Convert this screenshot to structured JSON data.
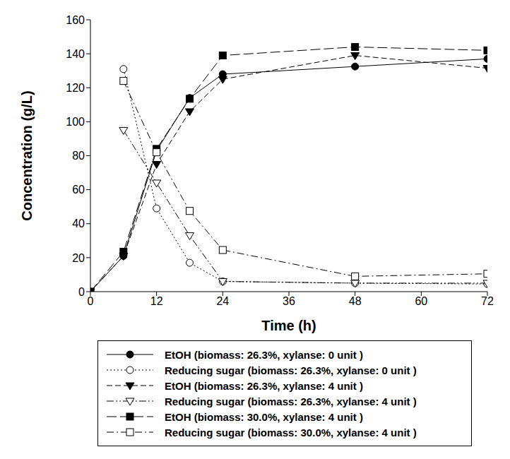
{
  "chart_data": {
    "type": "line",
    "x_label": "Time (h)",
    "y_label": "Concentration (g/L)",
    "x": [
      0,
      6,
      12,
      18,
      24,
      48,
      72
    ],
    "xlim": [
      0,
      72
    ],
    "xticks": [
      0,
      12,
      24,
      36,
      48,
      60,
      72
    ],
    "ylim": [
      0,
      160
    ],
    "yticks": [
      0,
      20,
      40,
      60,
      80,
      100,
      120,
      140,
      160
    ],
    "grid": false,
    "legend": "bottom",
    "series": [
      {
        "name": "EtOH (biomass: 26.3%, xylanse: 0 unit )",
        "color": "#000000",
        "marker": "circle",
        "line_style": "solid",
        "values": [
          0,
          21,
          83,
          114,
          128,
          132.5,
          137
        ]
      },
      {
        "name": "Reducing sugar (biomass: 26.3%, xylanse: 0 unit )",
        "color": "#000000",
        "marker": "circle_open",
        "line_style": "dotted",
        "values": [
          null,
          131,
          49,
          17,
          6,
          5,
          4.5
        ]
      },
      {
        "name": "EtOH (biomass: 26.3%, xylanse: 4 unit )",
        "color": "#000000",
        "marker": "triangle_down",
        "line_style": "dashed",
        "values": [
          0,
          21,
          75,
          106,
          125,
          139,
          131.5
        ]
      },
      {
        "name": "Reducing sugar (biomass: 26.3%, xylanse: 4 unit )",
        "color": "#000000",
        "marker": "triangle_down_open",
        "line_style": "dashdotdot",
        "values": [
          null,
          95,
          64,
          33,
          6,
          5,
          5
        ]
      },
      {
        "name": "EtOH (biomass: 30.0%, xylanse: 4 unit )",
        "color": "#000000",
        "marker": "square",
        "line_style": "longdash",
        "values": [
          0,
          23.5,
          84,
          113.5,
          139,
          144,
          142
        ]
      },
      {
        "name": "Reducing sugar (biomass: 30.0%, xylanse: 4 unit )",
        "color": "#000000",
        "marker": "square_open",
        "line_style": "dashdot",
        "values": [
          null,
          124,
          82,
          47.5,
          24.5,
          9,
          10.5
        ]
      }
    ]
  }
}
